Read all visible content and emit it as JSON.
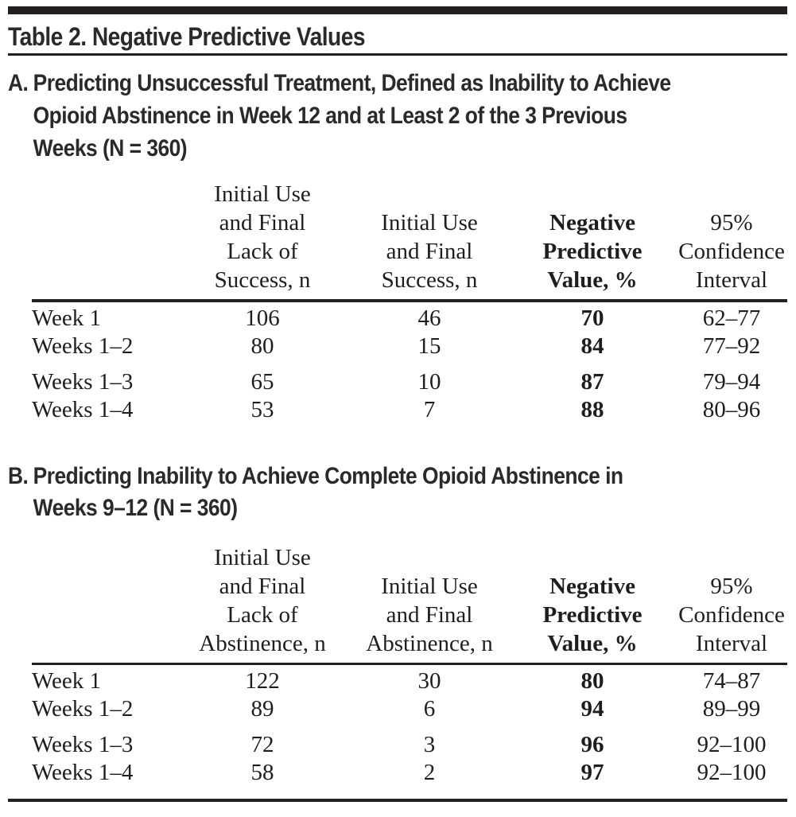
{
  "title": "Table 2. Negative Predictive Values",
  "colors": {
    "ink": "#231f20",
    "heading_text": "#2b2a29",
    "body_text": "#1f1e1d",
    "background": "#ffffff"
  },
  "sections": [
    {
      "marker": "A.",
      "heading": "Predicting Unsuccessful Treatment, Defined as Inability to Achieve\nOpioid Abstinence in Week 12 and at Least 2 of the 3 Previous\nWeeks (N = 360)",
      "columns": [
        "",
        "Initial Use\nand Final\nLack of\nSuccess, n",
        "Initial Use\nand Final\nSuccess, n",
        "Negative\nPredictive\nValue, %",
        "95%\nConfidence\nInterval"
      ],
      "rows": [
        [
          "Week 1",
          "106",
          "46",
          "70",
          "62–77"
        ],
        [
          "Weeks 1–2",
          "80",
          "15",
          "84",
          "77–92"
        ],
        [
          "Weeks 1–3",
          "65",
          "10",
          "87",
          "79–94"
        ],
        [
          "Weeks 1–4",
          "53",
          "7",
          "88",
          "80–96"
        ]
      ]
    },
    {
      "marker": "B.",
      "heading": "Predicting Inability to Achieve Complete Opioid Abstinence in\nWeeks 9–12 (N = 360)",
      "columns": [
        "",
        "Initial Use\nand Final\nLack of\nAbstinence, n",
        "Initial Use\nand Final\nAbstinence, n",
        "Negative\nPredictive\nValue, %",
        "95%\nConfidence\nInterval"
      ],
      "rows": [
        [
          "Week 1",
          "122",
          "30",
          "80",
          "74–87"
        ],
        [
          "Weeks 1–2",
          "89",
          "6",
          "94",
          "89–99"
        ],
        [
          "Weeks 1–3",
          "72",
          "3",
          "96",
          "92–100"
        ],
        [
          "Weeks 1–4",
          "58",
          "2",
          "97",
          "92–100"
        ]
      ]
    }
  ]
}
